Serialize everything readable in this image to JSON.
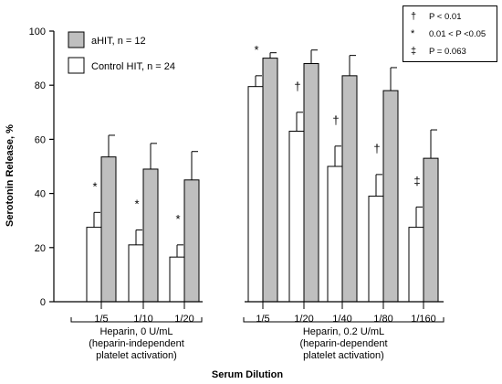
{
  "chart_data": {
    "type": "bar",
    "ylabel": "Serotonin Release, %",
    "xlabel": "Serum Dilution",
    "ylim": [
      0,
      100
    ],
    "yticks": [
      0,
      20,
      40,
      60,
      80,
      100
    ],
    "categories": [
      "1/5",
      "1/10",
      "1/20",
      "1/5",
      "1/20",
      "1/40",
      "1/80",
      "1/160"
    ],
    "series": [
      {
        "name": "Control HIT, n = 24",
        "color": "#ffffff",
        "values": [
          27.5,
          21,
          16.5,
          79.5,
          63,
          50,
          39,
          27.5
        ],
        "errors": [
          5.5,
          5.5,
          4.5,
          4,
          7,
          7.5,
          8,
          7.5
        ]
      },
      {
        "name": "aHIT, n = 12",
        "color": "#bfbfbf",
        "values": [
          53.5,
          49,
          45,
          90,
          88,
          83.5,
          78,
          53
        ],
        "errors": [
          8,
          9.5,
          10.5,
          2,
          5,
          7.5,
          8.5,
          10.5
        ]
      }
    ],
    "significance": [
      "*",
      "*",
      "*",
      "*",
      "†",
      "†",
      "†",
      "‡"
    ],
    "groups": [
      {
        "line1": "Heparin, 0 U/mL",
        "line2": "(heparin-independent",
        "line3": "platelet activation)"
      },
      {
        "line1": "Heparin, 0.2 U/mL",
        "line2": "(heparin-dependent",
        "line3": "platelet activation)"
      }
    ],
    "stat_legend": [
      {
        "symbol": "†",
        "text": "P < 0.01"
      },
      {
        "symbol": "*",
        "text": "0.01 < P <0.05"
      },
      {
        "symbol": "‡",
        "text": "P = 0.063"
      }
    ]
  }
}
